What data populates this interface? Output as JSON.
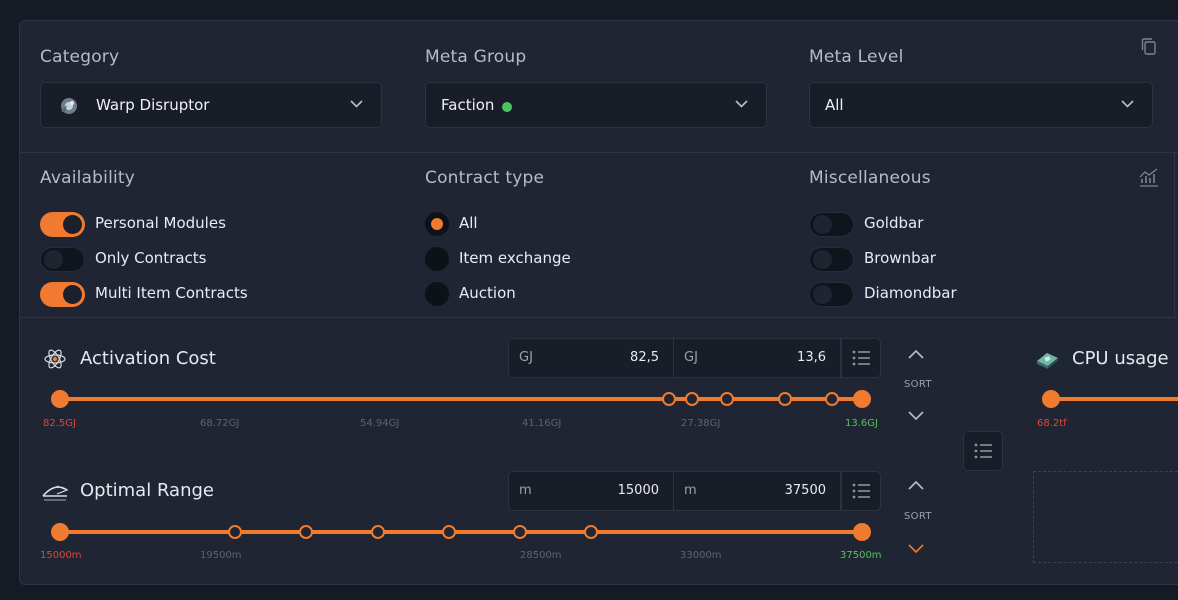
{
  "filters": {
    "category": {
      "label": "Category",
      "value": "Warp Disruptor",
      "icon": "warp-disruptor-icon"
    },
    "meta_group": {
      "label": "Meta Group",
      "value": "Faction",
      "status_color": "#4cc361"
    },
    "meta_level": {
      "label": "Meta Level",
      "value": "All"
    }
  },
  "availability": {
    "label": "Availability",
    "options": [
      {
        "label": "Personal Modules",
        "on": true
      },
      {
        "label": "Only Contracts",
        "on": false
      },
      {
        "label": "Multi Item Contracts",
        "on": true
      }
    ]
  },
  "contract_type": {
    "label": "Contract type",
    "options": [
      {
        "label": "All",
        "selected": true
      },
      {
        "label": "Item exchange",
        "selected": false
      },
      {
        "label": "Auction",
        "selected": false
      }
    ]
  },
  "misc": {
    "label": "Miscellaneous",
    "options": [
      {
        "label": "Goldbar",
        "on": false
      },
      {
        "label": "Brownbar",
        "on": false
      },
      {
        "label": "Diamondbar",
        "on": false
      }
    ]
  },
  "activation_cost": {
    "title": "Activation Cost",
    "min_unit": "GJ",
    "min_value": "82,5",
    "max_unit": "GJ",
    "max_value": "13,6",
    "ticks": [
      "82.5GJ",
      "68.72GJ",
      "54.94GJ",
      "41.16GJ",
      "27.38GJ",
      "13.6GJ"
    ],
    "sort": "SORT"
  },
  "optimal_range": {
    "title": "Optimal Range",
    "min_unit": "m",
    "min_value": "15000",
    "max_unit": "m",
    "max_value": "37500",
    "ticks": [
      "15000m",
      "19500m",
      "28500m",
      "33000m",
      "37500m"
    ],
    "sort": "SORT"
  },
  "cpu_usage": {
    "title": "CPU usage",
    "ticks": [
      "68.2tf"
    ]
  },
  "colors": {
    "accent": "#f07a2f",
    "min": "#e0453a",
    "max": "#54c45a"
  }
}
